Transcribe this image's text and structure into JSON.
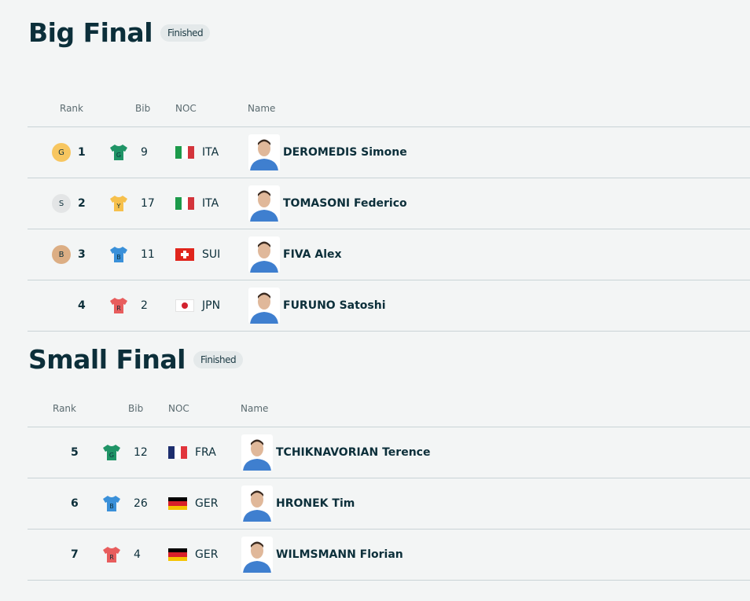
{
  "sections": [
    {
      "title": "Big Final",
      "status": "Finished",
      "headers": {
        "rank": "Rank",
        "bib": "Bib",
        "noc": "NOC",
        "name": "Name"
      },
      "rows": [
        {
          "medal": "G",
          "medal_color": "#f7c660",
          "rank": "1",
          "jersey": "G",
          "jersey_color": "#1f9466",
          "bib": "9",
          "noc": "ITA",
          "flag": "italy-flag",
          "name": "DEROMEDIS Simone"
        },
        {
          "medal": "S",
          "medal_color": "#e3e5e6",
          "rank": "2",
          "jersey": "Y",
          "jersey_color": "#f6c04c",
          "bib": "17",
          "noc": "ITA",
          "flag": "italy-flag",
          "name": "TOMASONI Federico"
        },
        {
          "medal": "B",
          "medal_color": "#dcae84",
          "rank": "3",
          "jersey": "B",
          "jersey_color": "#3a90d9",
          "bib": "11",
          "noc": "SUI",
          "flag": "switzerland-flag",
          "name": "FIVA Alex"
        },
        {
          "medal": "",
          "medal_color": "",
          "rank": "4",
          "jersey": "R",
          "jersey_color": "#e85d5d",
          "bib": "2",
          "noc": "JPN",
          "flag": "japan-flag",
          "name": "FURUNO Satoshi"
        }
      ]
    },
    {
      "title": "Small Final",
      "status": "Finished",
      "headers": {
        "rank": "Rank",
        "bib": "Bib",
        "noc": "NOC",
        "name": "Name"
      },
      "rows": [
        {
          "medal": "",
          "medal_color": "",
          "rank": "5",
          "jersey": "G",
          "jersey_color": "#1f9466",
          "bib": "12",
          "noc": "FRA",
          "flag": "france-flag",
          "name": "TCHIKNAVORIAN Terence"
        },
        {
          "medal": "",
          "medal_color": "",
          "rank": "6",
          "jersey": "B",
          "jersey_color": "#3a90d9",
          "bib": "26",
          "noc": "GER",
          "flag": "germany-flag",
          "name": "HRONEK Tim"
        },
        {
          "medal": "",
          "medal_color": "",
          "rank": "7",
          "jersey": "R",
          "jersey_color": "#e85d5d",
          "bib": "4",
          "noc": "GER",
          "flag": "germany-flag",
          "name": "WILMSMANN Florian"
        }
      ]
    }
  ]
}
